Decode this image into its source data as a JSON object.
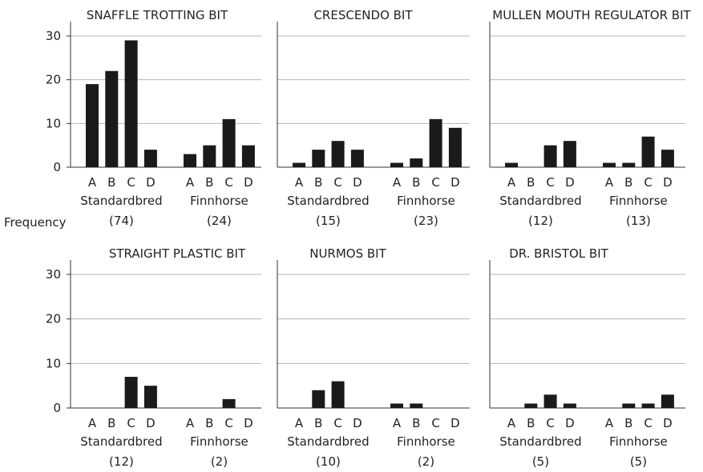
{
  "y_axis_label": "Frequency",
  "chart_data": [
    {
      "type": "bar",
      "title": "SNAFFLE TROTTING BIT",
      "ylim": [
        0,
        30
      ],
      "yticks": [
        0,
        10,
        20,
        30
      ],
      "grid": true,
      "categories": [
        "A",
        "B",
        "C",
        "D"
      ],
      "groups": [
        {
          "name": "Standardbred",
          "count": "(74)",
          "values": [
            19,
            22,
            29,
            4
          ]
        },
        {
          "name": "Finnhorse",
          "count": "(24)",
          "values": [
            3,
            5,
            11,
            5
          ]
        }
      ]
    },
    {
      "type": "bar",
      "title": "CRESCENDO BIT",
      "ylim": [
        0,
        30
      ],
      "yticks": [
        0,
        10,
        20,
        30
      ],
      "grid": true,
      "categories": [
        "A",
        "B",
        "C",
        "D"
      ],
      "groups": [
        {
          "name": "Standardbred",
          "count": "(15)",
          "values": [
            1,
            4,
            6,
            4
          ]
        },
        {
          "name": "Finnhorse",
          "count": "(23)",
          "values": [
            1,
            2,
            11,
            9
          ]
        }
      ]
    },
    {
      "type": "bar",
      "title": "MULLEN MOUTH REGULATOR BIT",
      "ylim": [
        0,
        30
      ],
      "yticks": [
        0,
        10,
        20,
        30
      ],
      "grid": true,
      "categories": [
        "A",
        "B",
        "C",
        "D"
      ],
      "groups": [
        {
          "name": "Standardbred",
          "count": "(12)",
          "values": [
            1,
            0,
            5,
            6
          ]
        },
        {
          "name": "Finnhorse",
          "count": "(13)",
          "values": [
            1,
            1,
            7,
            4
          ]
        }
      ]
    },
    {
      "type": "bar",
      "title": "STRAIGHT PLASTIC BIT",
      "ylim": [
        0,
        30
      ],
      "yticks": [
        0,
        10,
        20,
        30
      ],
      "grid": true,
      "categories": [
        "A",
        "B",
        "C",
        "D"
      ],
      "groups": [
        {
          "name": "Standardbred",
          "count": "(12)",
          "values": [
            0,
            0,
            7,
            5
          ]
        },
        {
          "name": "Finnhorse",
          "count": "(2)",
          "values": [
            0,
            0,
            2,
            0
          ]
        }
      ]
    },
    {
      "type": "bar",
      "title": "NURMOS BIT",
      "ylim": [
        0,
        30
      ],
      "yticks": [
        0,
        10,
        20,
        30
      ],
      "grid": true,
      "categories": [
        "A",
        "B",
        "C",
        "D"
      ],
      "groups": [
        {
          "name": "Standardbred",
          "count": "(10)",
          "values": [
            0,
            4,
            6,
            0
          ]
        },
        {
          "name": "Finnhorse",
          "count": "(2)",
          "values": [
            1,
            1,
            0,
            0
          ]
        }
      ]
    },
    {
      "type": "bar",
      "title": "DR. BRISTOL BIT",
      "ylim": [
        0,
        30
      ],
      "yticks": [
        0,
        10,
        20,
        30
      ],
      "grid": true,
      "categories": [
        "A",
        "B",
        "C",
        "D"
      ],
      "groups": [
        {
          "name": "Standardbred",
          "count": "(5)",
          "values": [
            0,
            1,
            3,
            1
          ]
        },
        {
          "name": "Finnhorse",
          "count": "(5)",
          "values": [
            0,
            1,
            1,
            3
          ]
        }
      ]
    }
  ],
  "colors": {
    "bar": "#1a1a1a",
    "grid": "#b4b4b4",
    "axis": "#333333",
    "text": "#222222"
  }
}
